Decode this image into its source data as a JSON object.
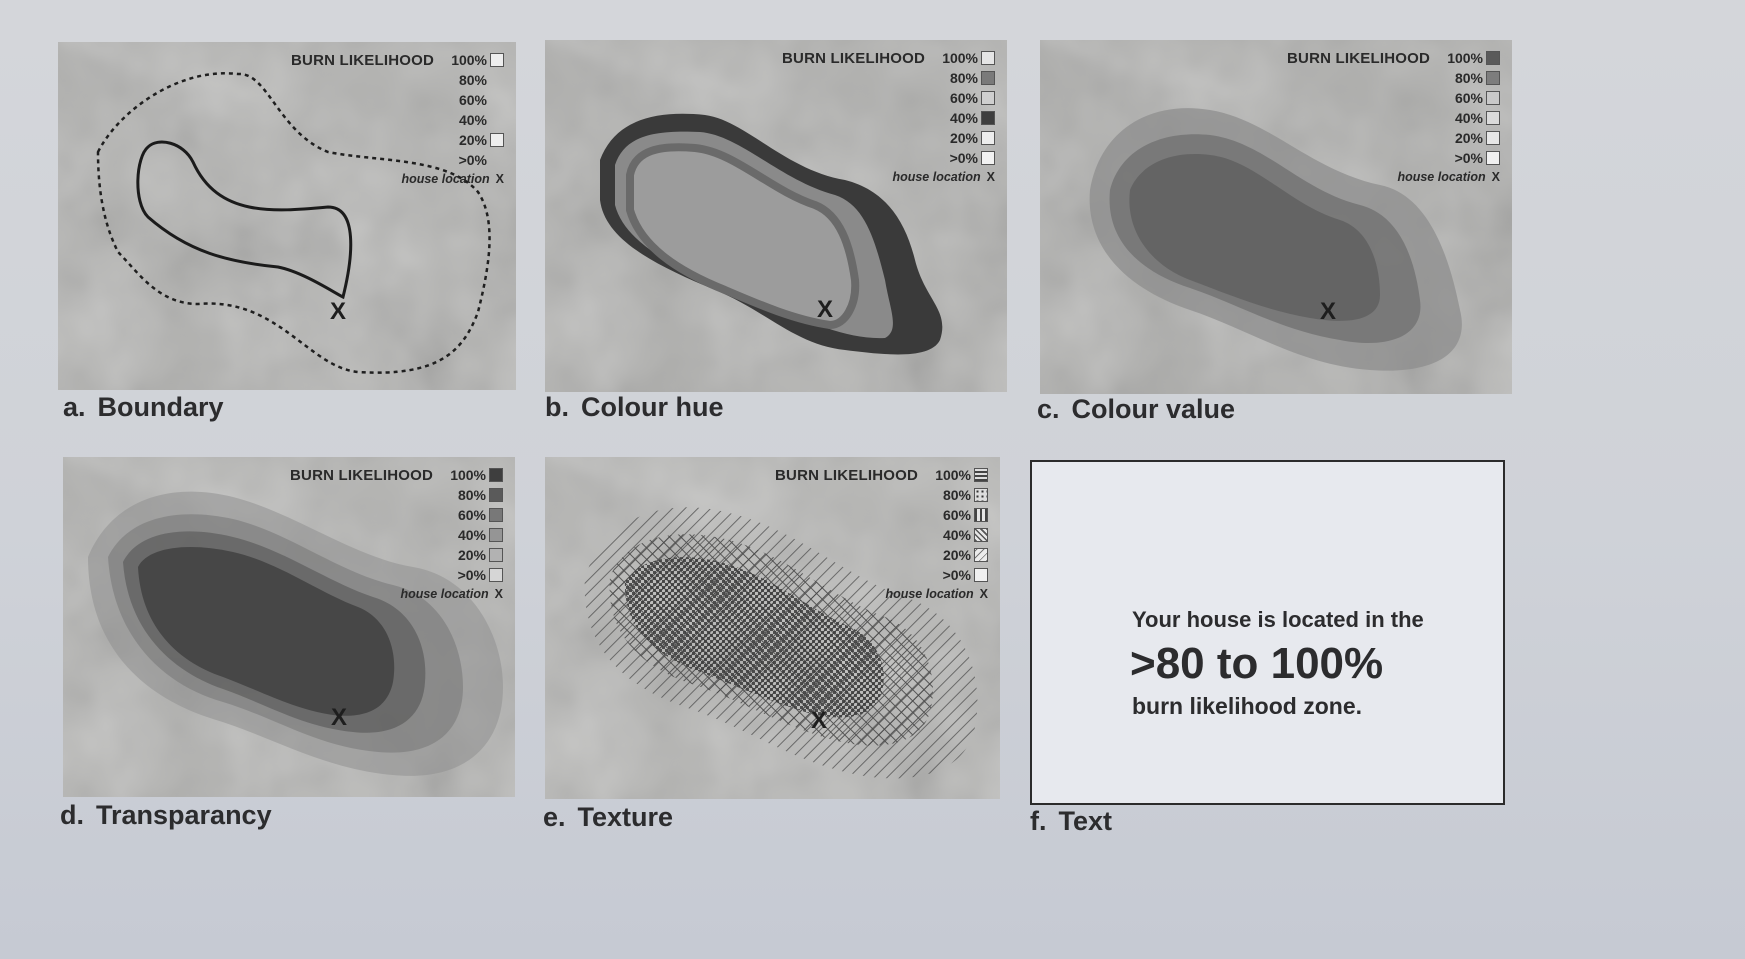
{
  "legend": {
    "title": "BURN LIKELIHOOD",
    "levels": [
      "100%",
      "80%",
      "60%",
      "40%",
      "20%",
      ">0%"
    ],
    "house_label": "house location",
    "house_marker": "X"
  },
  "panels": [
    {
      "id": "a",
      "letter": "a.",
      "caption": "Boundary"
    },
    {
      "id": "b",
      "letter": "b.",
      "caption": "Colour hue"
    },
    {
      "id": "c",
      "letter": "c.",
      "caption": "Colour value"
    },
    {
      "id": "d",
      "letter": "d.",
      "caption": "Transparancy"
    },
    {
      "id": "e",
      "letter": "e.",
      "caption": "Texture"
    },
    {
      "id": "f",
      "letter": "f.",
      "caption": "Text"
    }
  ],
  "text_panel": {
    "line1": "Your house is located in the",
    "highlight": ">80 to 100%",
    "line3": "burn likelihood zone."
  },
  "colors": {
    "background": "#d2d4d9",
    "map_base": "#b3b3b1",
    "ink": "#2a2a2a"
  }
}
